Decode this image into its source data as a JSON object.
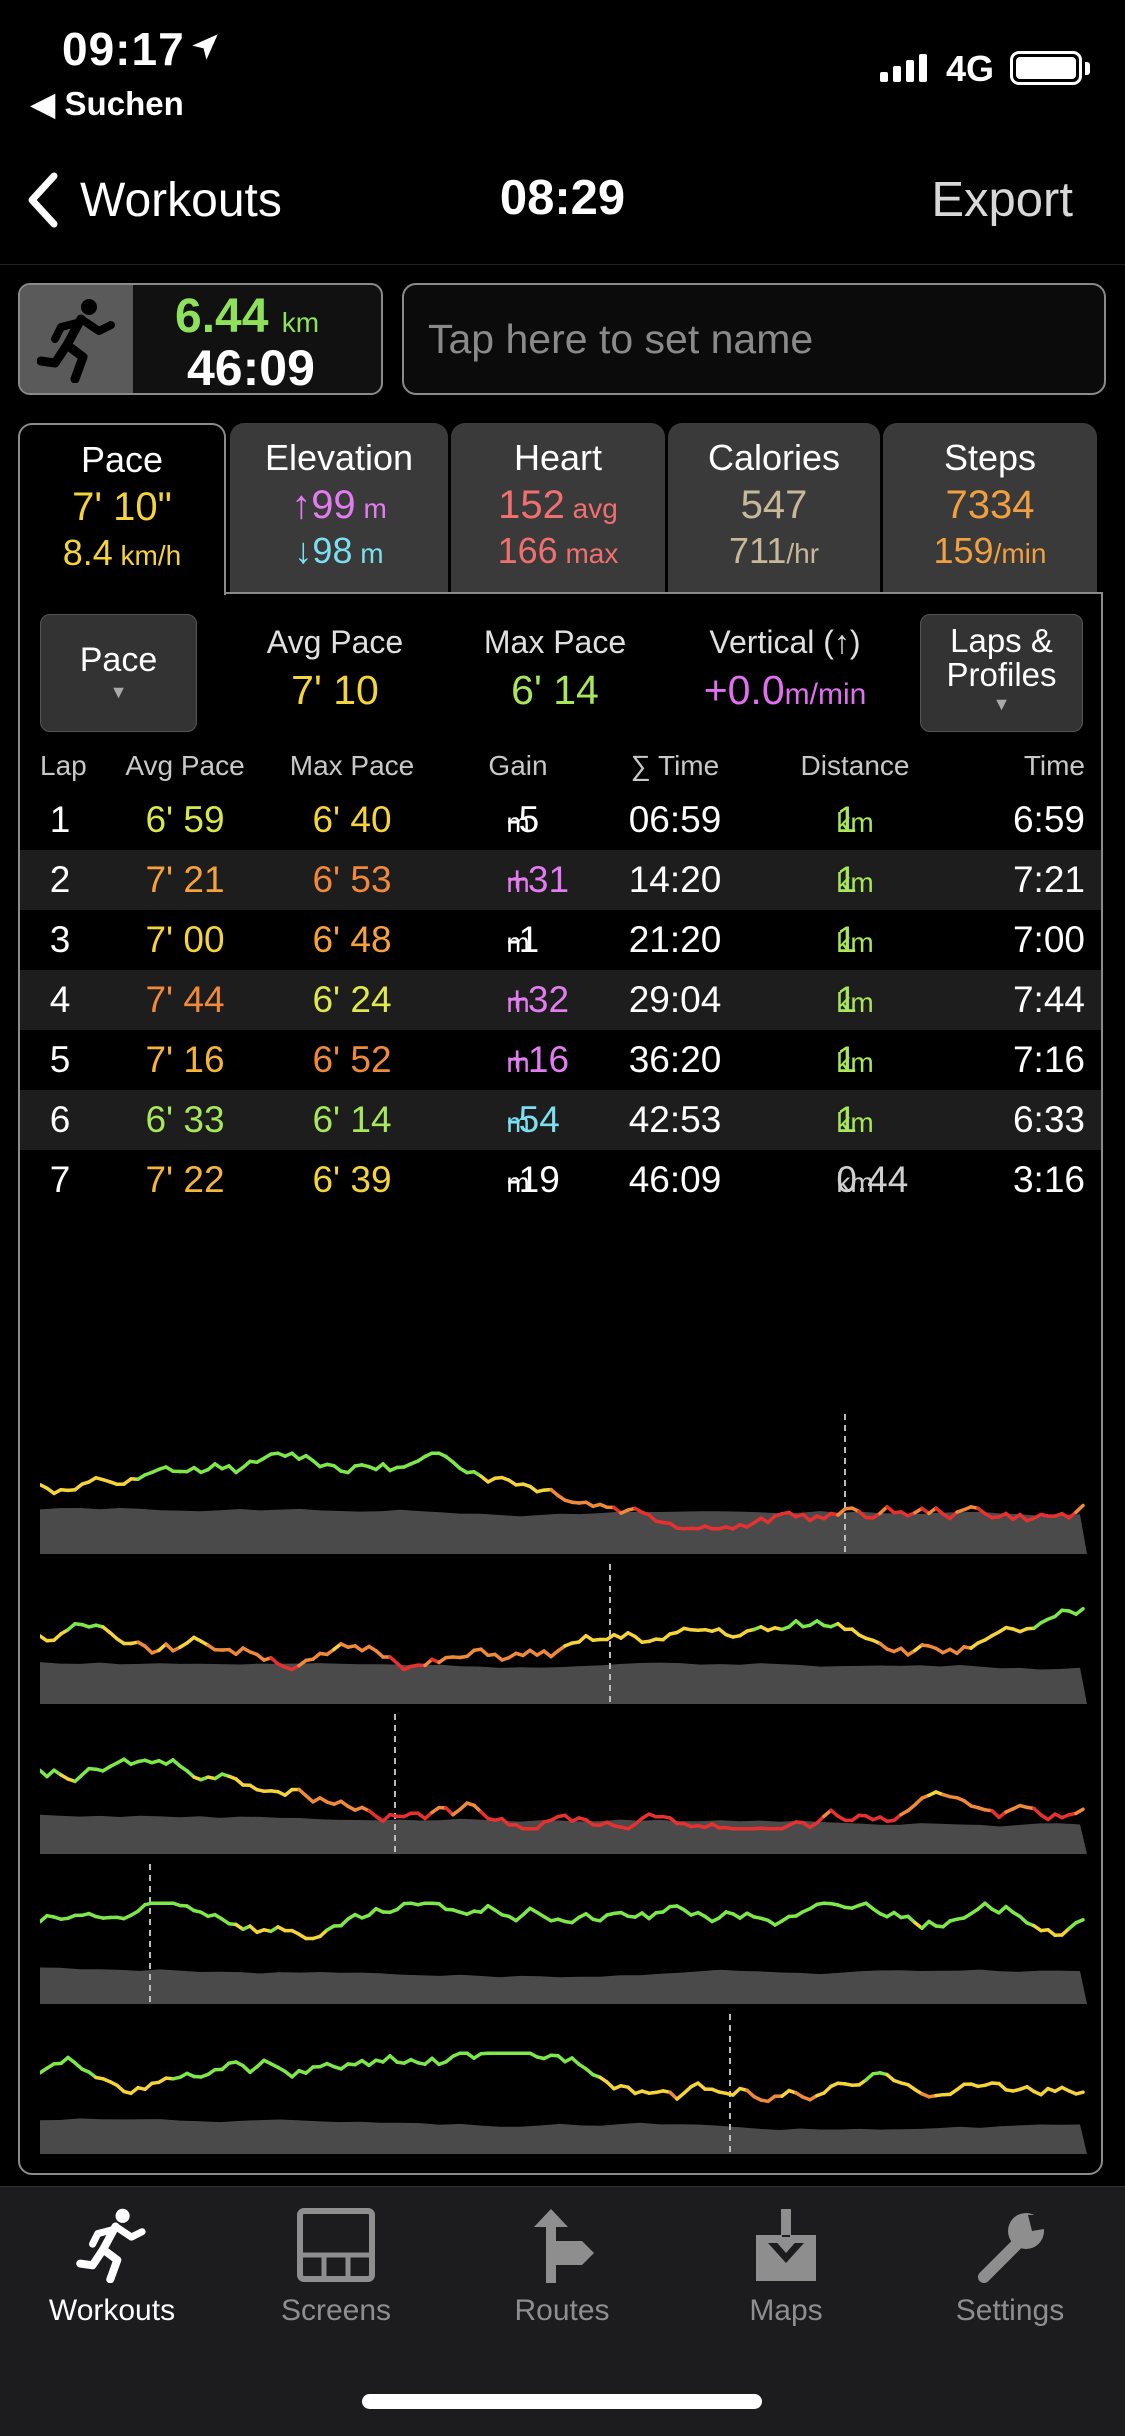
{
  "status_bar": {
    "time": "09:17",
    "back_app": "◀ Suchen",
    "network": "4G"
  },
  "nav": {
    "back_label": "Workouts",
    "title": "08:29",
    "export": "Export"
  },
  "summary": {
    "distance": "6.44",
    "distance_unit": "km",
    "duration": "46:09"
  },
  "name_placeholder": "Tap here to set name",
  "tabs": [
    {
      "name": "Pace",
      "line1": "7' 10\"",
      "line2": "8.4",
      "line2_unit": " km/h",
      "color1": "#f5d43a",
      "color2": "#f5d43a"
    },
    {
      "name": "Elevation",
      "line1": "↑99",
      "line1_unit": " m",
      "line2": "↓98",
      "line2_unit": " m",
      "color1": "#e27cf0",
      "color2": "#7cdff0"
    },
    {
      "name": "Heart",
      "line1": "152",
      "line1_unit": " avg",
      "line2": "166",
      "line2_unit": " max",
      "color1": "#f07070",
      "color2": "#f07070"
    },
    {
      "name": "Calories",
      "line1": "547",
      "line2": "711",
      "line2_unit": "/hr",
      "color1": "#c8b89a",
      "color2": "#c8b89a"
    },
    {
      "name": "Steps",
      "line1": "7334",
      "line2": "159",
      "line2_unit": "/min",
      "color1": "#f0a040",
      "color2": "#f0a040"
    }
  ],
  "controls": {
    "pace_dropdown": "Pace",
    "laps_dropdown": "Laps & Profiles",
    "stats": [
      {
        "label": "Avg Pace",
        "value": "7' 10",
        "color": "#f5d43a"
      },
      {
        "label": "Max Pace",
        "value": "6' 14",
        "color": "#a8e65a"
      },
      {
        "label": "Vertical (↑)",
        "value": "+0.0",
        "unit": "m/min",
        "color": "#e070f0"
      }
    ]
  },
  "lap_headers": [
    "Lap",
    "Avg Pace",
    "Max Pace",
    "Gain",
    "∑ Time",
    "Distance",
    "Time"
  ],
  "laps": [
    {
      "lap": "1",
      "avg": "6' 59",
      "avg_color": "#d8e84a",
      "max": "6' 40",
      "max_color": "#f5d43a",
      "gain": "-5",
      "gain_color": "#ffffff",
      "sum": "06:59",
      "dist": "1",
      "dist_unit": "km",
      "dist_color": "#a8e65a",
      "time": "6:59"
    },
    {
      "lap": "2",
      "avg": "7' 21",
      "avg_color": "#f5a23a",
      "max": "6' 53",
      "max_color": "#f08a3a",
      "gain": "+31",
      "gain_color": "#e27cf0",
      "sum": "14:20",
      "dist": "1",
      "dist_unit": "km",
      "dist_color": "#a8e65a",
      "time": "7:21"
    },
    {
      "lap": "3",
      "avg": "7' 00",
      "avg_color": "#f5d43a",
      "max": "6' 48",
      "max_color": "#f5a23a",
      "gain": "-1",
      "gain_color": "#ffffff",
      "sum": "21:20",
      "dist": "1",
      "dist_unit": "km",
      "dist_color": "#a8e65a",
      "time": "7:00"
    },
    {
      "lap": "4",
      "avg": "7' 44",
      "avg_color": "#f08a3a",
      "max": "6' 24",
      "max_color": "#e0e84a",
      "gain": "+32",
      "gain_color": "#e27cf0",
      "sum": "29:04",
      "dist": "1",
      "dist_unit": "km",
      "dist_color": "#a8e65a",
      "time": "7:44"
    },
    {
      "lap": "5",
      "avg": "7' 16",
      "avg_color": "#f5b43a",
      "max": "6' 52",
      "max_color": "#f08a3a",
      "gain": "+16",
      "gain_color": "#e27cf0",
      "sum": "36:20",
      "dist": "1",
      "dist_unit": "km",
      "dist_color": "#a8e65a",
      "time": "7:16"
    },
    {
      "lap": "6",
      "avg": "6' 33",
      "avg_color": "#a8e65a",
      "max": "6' 14",
      "max_color": "#a8e65a",
      "gain": "-54",
      "gain_color": "#7cdff0",
      "sum": "42:53",
      "dist": "1",
      "dist_unit": "km",
      "dist_color": "#a8e65a",
      "time": "6:33"
    },
    {
      "lap": "7",
      "avg": "7' 22",
      "avg_color": "#f5b43a",
      "max": "6' 39",
      "max_color": "#f5d43a",
      "gain": "-19",
      "gain_color": "#ffffff",
      "sum": "46:09",
      "dist": "0.44",
      "dist_unit": "km",
      "dist_color": "#cfcfcf",
      "time": "3:16"
    }
  ],
  "gain_unit": "m",
  "bottom_tabs": [
    {
      "label": "Workouts",
      "icon": "runner-icon",
      "active": true
    },
    {
      "label": "Screens",
      "icon": "screens-icon",
      "active": false
    },
    {
      "label": "Routes",
      "icon": "route-sign-icon",
      "active": false
    },
    {
      "label": "Maps",
      "icon": "map-download-icon",
      "active": false
    },
    {
      "label": "Settings",
      "icon": "wrench-icon",
      "active": false
    }
  ],
  "colors": {
    "fast": "#7ee84a",
    "mid": "#f5d43a",
    "slow": "#f08a3a",
    "slowest": "#e83030",
    "profile": "#4a4a4a"
  }
}
